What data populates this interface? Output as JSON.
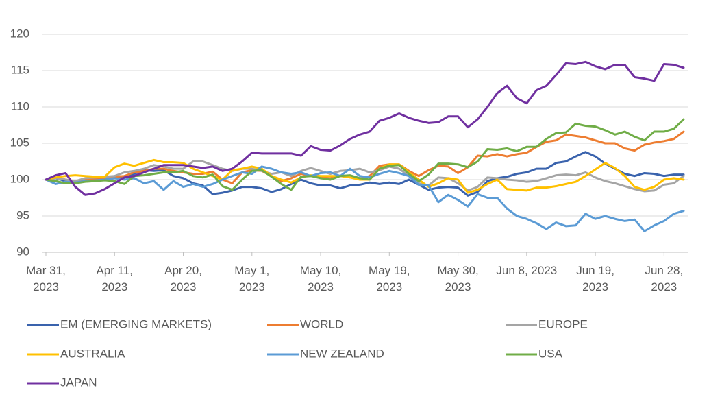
{
  "chart_data": {
    "type": "line",
    "legend": "bottom",
    "grid": true,
    "ylim": [
      90,
      120
    ],
    "yticks": [
      90,
      95,
      100,
      105,
      110,
      115,
      120
    ],
    "categories": [
      "Mar 31,\n2023",
      null,
      null,
      null,
      null,
      null,
      null,
      "Apr 11,\n2023",
      null,
      null,
      null,
      null,
      null,
      null,
      "Apr 20,\n2023",
      null,
      null,
      null,
      null,
      null,
      null,
      "May 1,\n2023",
      null,
      null,
      null,
      null,
      null,
      null,
      "May 10,\n2023",
      null,
      null,
      null,
      null,
      null,
      null,
      "May 19,\n2023",
      null,
      null,
      null,
      null,
      null,
      null,
      "May 30,\n2023",
      null,
      null,
      null,
      null,
      null,
      null,
      "Jun 8, 2023",
      null,
      null,
      null,
      null,
      null,
      null,
      "Jun 19,\n2023",
      null,
      null,
      null,
      null,
      null,
      null,
      "Jun 28,\n2023",
      null,
      null
    ],
    "series": [
      {
        "name": "EM (EMERGING MARKETS)",
        "color": "#3a63ad",
        "values": [
          100,
          100.2,
          99.8,
          99.6,
          99.8,
          100,
          100,
          100.2,
          100.3,
          100.8,
          101.3,
          101.2,
          101.3,
          100.5,
          100.2,
          99.5,
          99.2,
          98,
          98.2,
          98.5,
          99,
          99,
          98.8,
          98.3,
          98.7,
          99.4,
          100,
          99.5,
          99.2,
          99.2,
          98.8,
          99.2,
          99.3,
          99.6,
          99.4,
          99.6,
          99.4,
          100,
          99.3,
          98.6,
          98.9,
          99,
          98.9,
          97.8,
          98.3,
          99.8,
          100.2,
          100.4,
          100.8,
          101,
          101.5,
          101.5,
          102.3,
          102.5,
          103.2,
          103.8,
          103.2,
          102.2,
          101.5,
          100.8,
          100.5,
          100.9,
          100.8,
          100.5,
          100.7,
          100.7
        ]
      },
      {
        "name": "WORLD",
        "color": "#ed7d31",
        "values": [
          100,
          100.3,
          100,
          99.8,
          100,
          100.1,
          100.2,
          100.4,
          100.5,
          101,
          101.2,
          101.5,
          101.5,
          101.2,
          101,
          100.8,
          100.8,
          101.1,
          100,
          99.5,
          101,
          101.3,
          101.2,
          100.5,
          99.8,
          100.2,
          100.8,
          100.5,
          100.3,
          100.2,
          100.5,
          100.3,
          100.1,
          100.5,
          101.9,
          102.1,
          102.1,
          101.2,
          100.5,
          101.3,
          101.9,
          101.8,
          100.9,
          101.7,
          103.3,
          103.2,
          103.5,
          103.2,
          103.5,
          103.7,
          104.5,
          105.2,
          105.4,
          106.2,
          106,
          105.8,
          105.4,
          105,
          105,
          104.3,
          104,
          104.8,
          105.1,
          105.3,
          105.6,
          106.6
        ]
      },
      {
        "name": "EUROPE",
        "color": "#a5a5a5",
        "values": [
          100,
          100.2,
          100,
          99.8,
          100.2,
          100.3,
          100.4,
          100.5,
          101,
          101.2,
          101.5,
          102,
          101.8,
          101.5,
          101.5,
          102.5,
          102.5,
          102,
          101.5,
          101.2,
          101.5,
          101.5,
          101.2,
          100.8,
          101,
          100.5,
          101.2,
          101.6,
          101.2,
          100.8,
          101.2,
          101.3,
          101.5,
          101,
          101.3,
          101.8,
          101.5,
          100.5,
          99.5,
          99.2,
          100.3,
          100.2,
          99.5,
          98.5,
          99,
          100.3,
          100.2,
          100,
          99.9,
          99.7,
          99.8,
          100.2,
          100.6,
          100.7,
          100.6,
          101,
          100.3,
          99.8,
          99.5,
          99.1,
          98.7,
          98.4,
          98.5,
          99.3,
          99.5,
          100.5
        ]
      },
      {
        "name": "AUSTRALIA",
        "color": "#ffc000",
        "values": [
          100,
          100.3,
          100.5,
          100.6,
          100.5,
          100.4,
          100.4,
          101.7,
          102.2,
          101.9,
          102.3,
          102.7,
          102.4,
          102.4,
          102.3,
          101.5,
          101,
          100.5,
          100,
          101.3,
          101.5,
          101.8,
          101.5,
          100.5,
          100,
          99.6,
          100.3,
          100.6,
          100.5,
          100.5,
          100.5,
          100.3,
          100,
          100,
          101.5,
          102.1,
          102.1,
          101,
          100,
          99,
          99.5,
          100.2,
          100,
          98.2,
          98.6,
          99.4,
          100,
          98.7,
          98.6,
          98.5,
          98.9,
          98.9,
          99.1,
          99.4,
          99.7,
          100.5,
          101.4,
          102.3,
          101.6,
          100.5,
          99,
          98.6,
          99,
          100,
          100.2,
          100
        ]
      },
      {
        "name": "NEW ZEALAND",
        "color": "#5b9bd5",
        "values": [
          100,
          99.4,
          99.7,
          99.6,
          99.8,
          99.9,
          100,
          100.2,
          100,
          100.2,
          99.5,
          99.8,
          98.6,
          99.8,
          99,
          99.4,
          99,
          99.4,
          100,
          100.5,
          101,
          100.8,
          101.8,
          101.5,
          101,
          100.8,
          101,
          100.5,
          100.9,
          101,
          100.5,
          101.5,
          100.5,
          100.3,
          100.8,
          101.2,
          100.9,
          100.5,
          99.3,
          99.2,
          96.9,
          97.9,
          97.2,
          96.3,
          98,
          97.5,
          97.5,
          96,
          95,
          94.6,
          94,
          93.2,
          94.1,
          93.6,
          93.7,
          95.3,
          94.6,
          95,
          94.6,
          94.3,
          94.5,
          92.9,
          93.7,
          94.3,
          95.3,
          95.7
        ]
      },
      {
        "name": "USA",
        "color": "#70ad47",
        "values": [
          100,
          99.8,
          99.5,
          99.5,
          99.7,
          99.8,
          99.9,
          99.8,
          99.4,
          100.5,
          100.6,
          100.8,
          101,
          101,
          101.2,
          100.5,
          100.3,
          100.7,
          99.1,
          98.6,
          100,
          101.2,
          101.3,
          100.4,
          99.4,
          98.6,
          100.4,
          100.5,
          100.2,
          100,
          100.5,
          100.6,
          100.2,
          100,
          101.5,
          101.9,
          102,
          100.8,
          99.8,
          100.7,
          102.2,
          102.2,
          102.1,
          101.7,
          102.5,
          104.2,
          104.1,
          104.3,
          103.9,
          104.5,
          104.5,
          105.6,
          106.4,
          106.5,
          107.7,
          107.4,
          107.3,
          106.8,
          106.2,
          106.6,
          105.9,
          105.4,
          106.6,
          106.6,
          107,
          108.3
        ]
      },
      {
        "name": "JAPAN",
        "color": "#7030a0",
        "values": [
          100,
          100.6,
          100.9,
          99,
          97.9,
          98.1,
          98.7,
          99.5,
          100.3,
          100.5,
          101,
          101.5,
          102,
          102,
          102,
          101.8,
          101.6,
          101.8,
          101.2,
          101.5,
          102.5,
          103.7,
          103.6,
          103.6,
          103.6,
          103.6,
          103.3,
          104.6,
          104.1,
          104,
          104.7,
          105.6,
          106.2,
          106.6,
          108.1,
          108.5,
          109.1,
          108.5,
          108.1,
          107.8,
          107.9,
          108.7,
          108.7,
          107.2,
          108.3,
          110,
          111.9,
          112.9,
          111.2,
          110.5,
          112.3,
          112.9,
          114.4,
          116,
          115.9,
          116.2,
          115.6,
          115.2,
          115.8,
          115.8,
          114.1,
          113.9,
          113.6,
          115.9,
          115.8,
          115.4
        ]
      }
    ]
  }
}
